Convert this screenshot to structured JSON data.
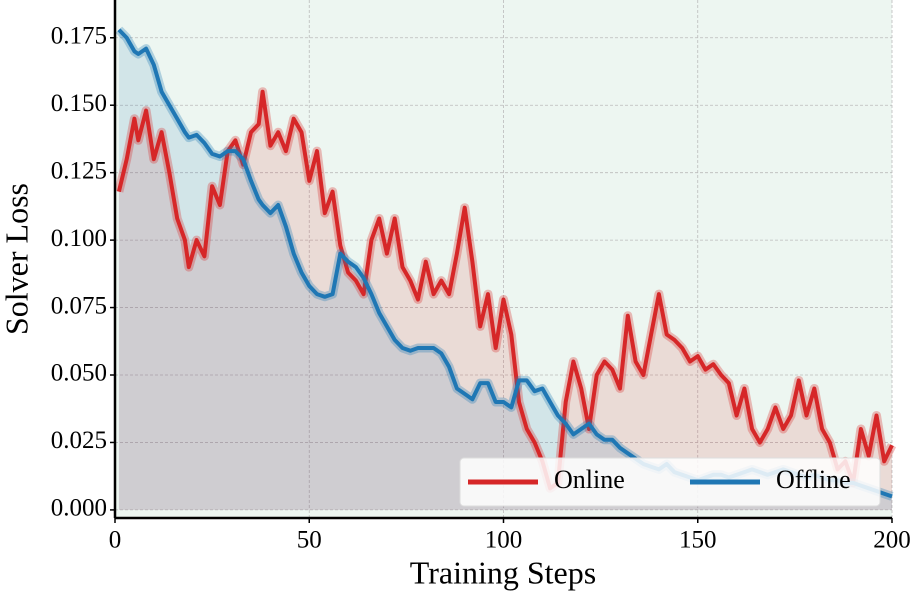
{
  "chart_data": {
    "type": "line",
    "xlabel": "Training Steps",
    "ylabel": "Solver Loss",
    "xlim": [
      0,
      200
    ],
    "ylim": [
      -0.003,
      0.189
    ],
    "xticks": [
      0,
      50,
      100,
      150,
      200
    ],
    "yticks": [
      {
        "value": 0,
        "label": "0.000"
      },
      {
        "value": 0.025,
        "label": "0.025"
      },
      {
        "value": 0.05,
        "label": "0.050"
      },
      {
        "value": 0.075,
        "label": "0.075"
      },
      {
        "value": 0.1,
        "label": "0.100"
      },
      {
        "value": 0.125,
        "label": "0.125"
      },
      {
        "value": 0.15,
        "label": "0.150"
      },
      {
        "value": 0.175,
        "label": "0.175"
      }
    ],
    "grid": true,
    "legend": "lower right",
    "background": "#edf6f1",
    "x": [
      1,
      3,
      5,
      6,
      8,
      10,
      12,
      14,
      16,
      18,
      19,
      21,
      23,
      25,
      27,
      29,
      31,
      33,
      35,
      37,
      38,
      40,
      42,
      44,
      46,
      48,
      50,
      52,
      54,
      56,
      58,
      60,
      62,
      64,
      66,
      68,
      70,
      72,
      74,
      76,
      78,
      80,
      82,
      84,
      86,
      88,
      90,
      92,
      94,
      96,
      98,
      100,
      102,
      104,
      106,
      108,
      110,
      112,
      114,
      116,
      118,
      120,
      122,
      124,
      126,
      128,
      130,
      132,
      134,
      136,
      138,
      140,
      142,
      144,
      146,
      148,
      150,
      152,
      154,
      156,
      158,
      160,
      162,
      164,
      166,
      168,
      170,
      172,
      174,
      176,
      178,
      180,
      182,
      184,
      186,
      188,
      190,
      192,
      194,
      196,
      198,
      200
    ],
    "series": [
      {
        "name": "Online",
        "color": "#d62728",
        "fill": "rgba(214,39,40,0.13)",
        "values": [
          0.118,
          0.13,
          0.145,
          0.137,
          0.148,
          0.13,
          0.14,
          0.125,
          0.108,
          0.1,
          0.09,
          0.1,
          0.094,
          0.12,
          0.113,
          0.133,
          0.137,
          0.128,
          0.14,
          0.143,
          0.155,
          0.135,
          0.14,
          0.133,
          0.145,
          0.14,
          0.122,
          0.133,
          0.11,
          0.118,
          0.098,
          0.088,
          0.085,
          0.08,
          0.1,
          0.108,
          0.095,
          0.108,
          0.09,
          0.085,
          0.078,
          0.092,
          0.08,
          0.085,
          0.08,
          0.095,
          0.112,
          0.092,
          0.068,
          0.08,
          0.06,
          0.078,
          0.065,
          0.04,
          0.03,
          0.025,
          0.018,
          0.008,
          0.01,
          0.04,
          0.055,
          0.045,
          0.03,
          0.05,
          0.055,
          0.052,
          0.045,
          0.072,
          0.055,
          0.05,
          0.065,
          0.08,
          0.065,
          0.063,
          0.06,
          0.055,
          0.057,
          0.052,
          0.054,
          0.05,
          0.047,
          0.035,
          0.045,
          0.03,
          0.025,
          0.03,
          0.038,
          0.03,
          0.035,
          0.048,
          0.035,
          0.045,
          0.03,
          0.025,
          0.015,
          0.018,
          0.01,
          0.03,
          0.02,
          0.035,
          0.018,
          0.024
        ]
      },
      {
        "name": "Offline",
        "color": "#1f77b4",
        "fill": "rgba(31,119,180,0.13)",
        "values": [
          0.178,
          0.175,
          0.17,
          0.169,
          0.171,
          0.165,
          0.155,
          0.15,
          0.145,
          0.14,
          0.138,
          0.139,
          0.136,
          0.132,
          0.131,
          0.133,
          0.133,
          0.13,
          0.122,
          0.115,
          0.113,
          0.11,
          0.113,
          0.105,
          0.095,
          0.088,
          0.083,
          0.08,
          0.079,
          0.08,
          0.095,
          0.092,
          0.09,
          0.086,
          0.08,
          0.073,
          0.068,
          0.063,
          0.06,
          0.059,
          0.06,
          0.06,
          0.06,
          0.058,
          0.053,
          0.045,
          0.043,
          0.041,
          0.047,
          0.047,
          0.04,
          0.04,
          0.038,
          0.048,
          0.048,
          0.044,
          0.045,
          0.04,
          0.035,
          0.032,
          0.028,
          0.03,
          0.032,
          0.028,
          0.026,
          0.026,
          0.023,
          0.021,
          0.019,
          0.017,
          0.016,
          0.015,
          0.017,
          0.014,
          0.013,
          0.012,
          0.011,
          0.012,
          0.013,
          0.013,
          0.012,
          0.013,
          0.014,
          0.015,
          0.014,
          0.013,
          0.014,
          0.015,
          0.014,
          0.013,
          0.012,
          0.013,
          0.012,
          0.011,
          0.011,
          0.01,
          0.01,
          0.009,
          0.008,
          0.007,
          0.006,
          0.005
        ]
      }
    ]
  }
}
